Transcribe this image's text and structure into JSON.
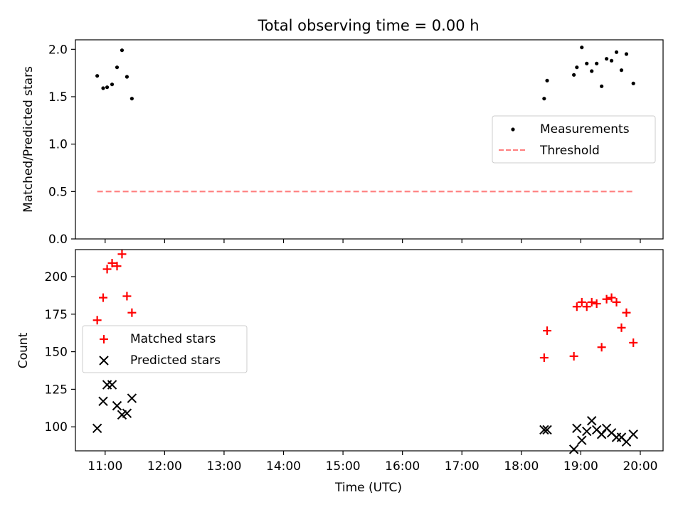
{
  "title": "Total observing time = 0.00 h",
  "chart_data": [
    {
      "type": "scatter",
      "ylabel": "Matched/Predicted stars",
      "ylim": [
        0,
        2.1
      ],
      "yticks": [
        0.0,
        0.5,
        1.0,
        1.5,
        2.0
      ],
      "ytick_labels": [
        "0.0",
        "0.5",
        "1.0",
        "1.5",
        "2.0"
      ],
      "legend": {
        "placement": "center-right",
        "entries": [
          "Measurements",
          "Threshold"
        ]
      },
      "series": [
        {
          "name": "Measurements",
          "marker": "dot",
          "color": "#000000",
          "x": [
            "10:52",
            "10:58",
            "11:02",
            "11:07",
            "11:12",
            "11:17",
            "11:22",
            "11:27",
            "18:23",
            "18:26",
            "18:53",
            "18:56",
            "19:01",
            "19:06",
            "19:11",
            "19:16",
            "19:21",
            "19:26",
            "19:31",
            "19:36",
            "19:41",
            "19:46",
            "19:53"
          ],
          "y": [
            1.72,
            1.59,
            1.6,
            1.63,
            1.81,
            1.99,
            1.71,
            1.48,
            1.48,
            1.67,
            1.73,
            1.81,
            2.02,
            1.85,
            1.77,
            1.85,
            1.61,
            1.9,
            1.88,
            1.97,
            1.78,
            1.95,
            1.64
          ]
        },
        {
          "name": "Threshold",
          "style": "dashed-line",
          "color": "#ff7f7f",
          "x": [
            "10:52",
            "19:53"
          ],
          "y": [
            0.5,
            0.5
          ]
        }
      ]
    },
    {
      "type": "scatter",
      "xlabel": "Time (UTC)",
      "ylabel": "Count",
      "ylim": [
        84,
        218
      ],
      "yticks": [
        100,
        125,
        150,
        175,
        200
      ],
      "ytick_labels": [
        "100",
        "125",
        "150",
        "175",
        "200"
      ],
      "xlim": [
        "10:30",
        "20:23"
      ],
      "xticks": [
        "11:00",
        "12:00",
        "13:00",
        "14:00",
        "15:00",
        "16:00",
        "17:00",
        "18:00",
        "19:00",
        "20:00"
      ],
      "legend": {
        "placement": "center-left",
        "entries": [
          "Matched stars",
          "Predicted stars"
        ]
      },
      "series": [
        {
          "name": "Matched stars",
          "marker": "plus",
          "color": "#ff0000",
          "x": [
            "10:52",
            "10:58",
            "11:02",
            "11:07",
            "11:12",
            "11:17",
            "11:22",
            "11:27",
            "18:23",
            "18:26",
            "18:53",
            "18:56",
            "19:01",
            "19:06",
            "19:11",
            "19:16",
            "19:21",
            "19:26",
            "19:31",
            "19:36",
            "19:41",
            "19:46",
            "19:53"
          ],
          "y": [
            171,
            186,
            205,
            209,
            207,
            215,
            187,
            176,
            146,
            164,
            147,
            180,
            183,
            180,
            183,
            182,
            153,
            185,
            186,
            183,
            166,
            176,
            156
          ]
        },
        {
          "name": "Predicted stars",
          "marker": "x",
          "color": "#000000",
          "x": [
            "10:52",
            "10:58",
            "11:02",
            "11:07",
            "11:12",
            "11:17",
            "11:22",
            "11:27",
            "18:23",
            "18:26",
            "18:53",
            "18:56",
            "19:01",
            "19:06",
            "19:11",
            "19:16",
            "19:21",
            "19:26",
            "19:31",
            "19:36",
            "19:41",
            "19:46",
            "19:53"
          ],
          "y": [
            99,
            117,
            128,
            128,
            114,
            108,
            109,
            119,
            98,
            98,
            85,
            99,
            91,
            97,
            104,
            98,
            95,
            99,
            96,
            93,
            93,
            90,
            95
          ]
        }
      ]
    }
  ]
}
